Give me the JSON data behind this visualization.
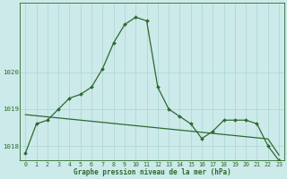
{
  "title": "Graphe pression niveau de la mer (hPa)",
  "x_values": [
    0,
    1,
    2,
    3,
    4,
    5,
    6,
    7,
    8,
    9,
    10,
    11,
    12,
    13,
    14,
    15,
    16,
    17,
    18,
    19,
    20,
    21,
    22,
    23
  ],
  "pressure_data": [
    1017.8,
    1018.6,
    1018.7,
    1019.0,
    1019.3,
    1019.4,
    1019.6,
    1020.1,
    1020.8,
    1021.3,
    1021.5,
    1021.4,
    1019.6,
    1019.0,
    1018.8,
    1018.6,
    1018.2,
    1018.4,
    1018.7,
    1018.7,
    1018.7,
    1018.6,
    1018.0,
    1017.6
  ],
  "trend_data": [
    1018.85,
    1018.82,
    1018.79,
    1018.76,
    1018.73,
    1018.7,
    1018.67,
    1018.64,
    1018.61,
    1018.58,
    1018.55,
    1018.52,
    1018.49,
    1018.46,
    1018.43,
    1018.4,
    1018.37,
    1018.34,
    1018.31,
    1018.28,
    1018.25,
    1018.22,
    1018.19,
    1017.75
  ],
  "ylim": [
    1017.6,
    1021.9
  ],
  "yticks": [
    1018,
    1019,
    1020
  ],
  "line_color": "#2d6a2d",
  "bg_color": "#cceaea",
  "grid_color": "#aad4d4",
  "text_color": "#2d6a2d",
  "marker": "D",
  "marker_size": 2.0,
  "line_width": 0.9,
  "title_fontsize": 5.5,
  "tick_fontsize": 4.8
}
